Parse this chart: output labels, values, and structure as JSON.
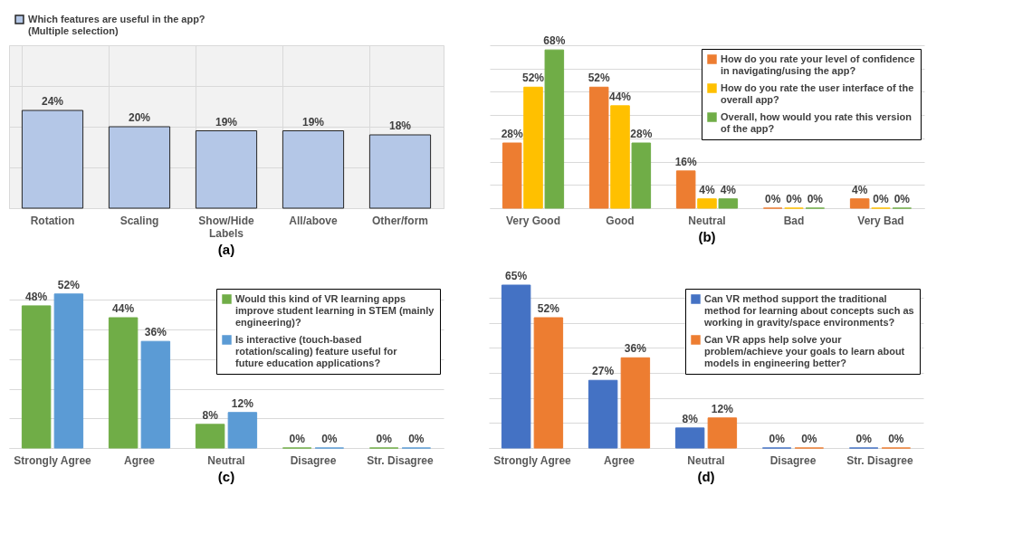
{
  "chart_data": [
    {
      "type": "bar",
      "title": "(a)",
      "categories": [
        "Rotation",
        "Scaling",
        "Show/Hide Labels",
        "All/above",
        "Other/form"
      ],
      "series": [
        {
          "name": "Which features are useful in the app? (Multiple selection)",
          "color": "#b4c7e7",
          "values": [
            24,
            20,
            19,
            19,
            18
          ],
          "value_labels": [
            "24%",
            "20%",
            "19%",
            "19%",
            "18%"
          ]
        }
      ],
      "ylim": [
        0,
        40
      ],
      "tick_labels": "x",
      "grid": true,
      "legend": "top"
    },
    {
      "type": "bar",
      "title": "(b)",
      "categories": [
        "Very Good",
        "Good",
        "Neutral",
        "Bad",
        "Very Bad"
      ],
      "series": [
        {
          "name": "How do you rate your level of confidence in navigating/using the app?",
          "color": "#ed7d31",
          "values": [
            28,
            52,
            16,
            0,
            4
          ],
          "value_labels": [
            "28%",
            "52%",
            "16%",
            "0%",
            "4%"
          ]
        },
        {
          "name": "How do you rate the user interface of the overall app?",
          "color": "#ffc000",
          "values": [
            52,
            44,
            4,
            0,
            0
          ],
          "value_labels": [
            "52%",
            "44%",
            "4%",
            "0%",
            "0%"
          ]
        },
        {
          "name": "Overall, how would you rate this version of the app?",
          "color": "#70ad47",
          "values": [
            68,
            28,
            4,
            0,
            0
          ],
          "value_labels": [
            "68%",
            "28%",
            "4%",
            "0%",
            "0%"
          ]
        }
      ],
      "tick_labels": "x",
      "grid": "y",
      "legend": "top right"
    },
    {
      "type": "bar",
      "title": "(c)",
      "categories": [
        "Strongly Agree",
        "Agree",
        "Neutral",
        "Disagree",
        "Str. Disagree"
      ],
      "series": [
        {
          "name": "Would this kind of VR learning apps improve student learning in STEM (mainly engineering)?",
          "color": "#70ad47",
          "values": [
            48,
            44,
            8,
            0,
            0
          ],
          "value_labels": [
            "48%",
            "44%",
            "8%",
            "0%",
            "0%"
          ]
        },
        {
          "name": "Is interactive (touch-based rotation/scaling) feature useful for future education applications?",
          "color": "#5b9bd5",
          "values": [
            52,
            36,
            12,
            0,
            0
          ],
          "value_labels": [
            "52%",
            "36%",
            "12%",
            "0%",
            "0%"
          ]
        }
      ],
      "tick_labels": "x",
      "grid": "y",
      "legend": "top right"
    },
    {
      "type": "bar",
      "title": "(d)",
      "categories": [
        "Strongly Agree",
        "Agree",
        "Neutral",
        "Disagree",
        "Str. Disagree"
      ],
      "series": [
        {
          "name": "Can VR method support the traditional method for learning about concepts such as working in gravity/space environments?",
          "color": "#4472c4",
          "values": [
            65,
            27,
            8,
            0,
            0
          ],
          "value_labels": [
            "65%",
            "27%",
            "8%",
            "0%",
            "0%"
          ]
        },
        {
          "name": "Can VR apps help solve your problem/achieve your goals to learn about models in engineering better?",
          "color": "#ed7d31",
          "values": [
            52,
            36,
            12,
            0,
            0
          ],
          "value_labels": [
            "52%",
            "36%",
            "12%",
            "0%",
            "0%"
          ]
        }
      ],
      "tick_labels": "x",
      "grid": "y",
      "legend": "top right"
    }
  ]
}
